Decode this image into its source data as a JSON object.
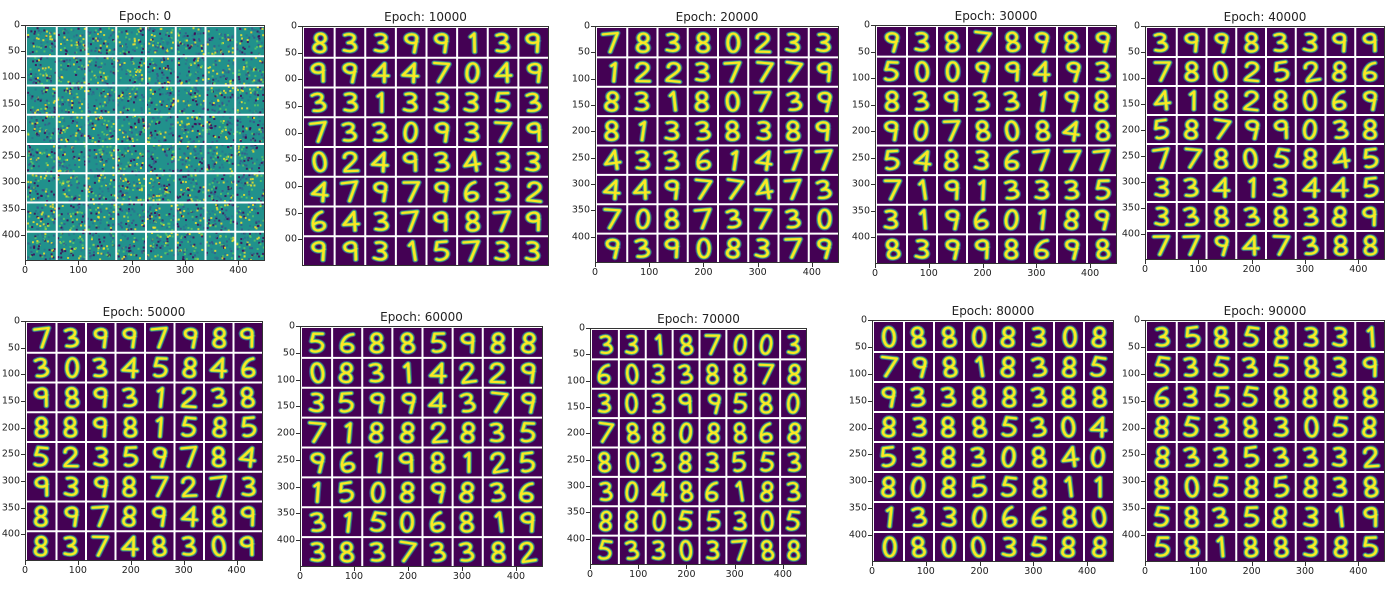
{
  "panels": [
    {
      "title": "Epoch: 0",
      "variant": "noise",
      "yticks": [
        "0",
        "50",
        "100",
        "150",
        "200",
        "250",
        "300",
        "350",
        "400"
      ],
      "xticks": [
        "0",
        "100",
        "200",
        "300",
        "400"
      ],
      "digits": []
    },
    {
      "title": "Epoch: 10000",
      "variant": "digits",
      "yticks": [
        "0",
        "50",
        "00",
        "50",
        "00",
        "50",
        "00",
        "50",
        "00"
      ],
      "xticks": [],
      "digits": [
        "8",
        "3",
        "3",
        "9",
        "9",
        "1",
        "3",
        "9",
        "9",
        "9",
        "4",
        "4",
        "7",
        "0",
        "4",
        "9",
        "3",
        "3",
        "1",
        "3",
        "3",
        "3",
        "5",
        "3",
        "7",
        "3",
        "3",
        "0",
        "9",
        "3",
        "7",
        "9",
        "0",
        "2",
        "4",
        "9",
        "3",
        "4",
        "3",
        "3",
        "4",
        "7",
        "9",
        "7",
        "9",
        "6",
        "3",
        "2",
        "6",
        "4",
        "3",
        "7",
        "9",
        "8",
        "7",
        "9",
        "9",
        "9",
        "3",
        "1",
        "5",
        "7",
        "3",
        "3"
      ]
    },
    {
      "title": "Epoch: 20000",
      "variant": "digits",
      "yticks": [
        "0",
        "50",
        "100",
        "150",
        "200",
        "250",
        "300",
        "350",
        "400"
      ],
      "xticks": [
        "0",
        "100",
        "200",
        "300",
        "400"
      ],
      "digits": [
        "7",
        "8",
        "3",
        "8",
        "0",
        "2",
        "3",
        "3",
        "1",
        "2",
        "2",
        "3",
        "7",
        "7",
        "7",
        "9",
        "8",
        "3",
        "1",
        "8",
        "0",
        "7",
        "3",
        "9",
        "8",
        "1",
        "3",
        "3",
        "8",
        "3",
        "8",
        "9",
        "4",
        "3",
        "3",
        "6",
        "1",
        "4",
        "7",
        "7",
        "4",
        "4",
        "9",
        "7",
        "7",
        "4",
        "7",
        "3",
        "7",
        "0",
        "8",
        "7",
        "3",
        "7",
        "3",
        "0",
        "9",
        "3",
        "9",
        "0",
        "8",
        "3",
        "7",
        "9"
      ]
    },
    {
      "title": "Epoch: 30000",
      "variant": "digits",
      "yticks": [
        "0",
        "50",
        "100",
        "150",
        "200",
        "250",
        "300",
        "350",
        "400"
      ],
      "xticks": [
        "0",
        "100",
        "200",
        "300",
        "400"
      ],
      "digits": [
        "9",
        "3",
        "8",
        "7",
        "8",
        "9",
        "8",
        "9",
        "5",
        "0",
        "0",
        "9",
        "9",
        "4",
        "9",
        "3",
        "8",
        "3",
        "9",
        "3",
        "3",
        "1",
        "9",
        "8",
        "9",
        "0",
        "7",
        "8",
        "0",
        "8",
        "4",
        "8",
        "5",
        "4",
        "8",
        "3",
        "6",
        "7",
        "7",
        "7",
        "7",
        "1",
        "9",
        "1",
        "3",
        "3",
        "3",
        "5",
        "3",
        "1",
        "9",
        "6",
        "0",
        "1",
        "8",
        "9",
        "8",
        "3",
        "9",
        "9",
        "8",
        "6",
        "9",
        "8"
      ]
    },
    {
      "title": "Epoch: 40000",
      "variant": "digits",
      "yticks": [
        "0",
        "50",
        "100",
        "150",
        "200",
        "250",
        "300",
        "350",
        "400"
      ],
      "xticks": [
        "0",
        "100",
        "200",
        "300",
        "400"
      ],
      "digits": [
        "3",
        "9",
        "9",
        "8",
        "3",
        "3",
        "9",
        "9",
        "7",
        "8",
        "0",
        "2",
        "5",
        "2",
        "8",
        "6",
        "4",
        "1",
        "8",
        "2",
        "8",
        "0",
        "6",
        "9",
        "5",
        "8",
        "7",
        "9",
        "9",
        "0",
        "3",
        "8",
        "7",
        "7",
        "8",
        "0",
        "5",
        "8",
        "4",
        "5",
        "3",
        "3",
        "4",
        "1",
        "3",
        "4",
        "4",
        "5",
        "3",
        "3",
        "8",
        "3",
        "8",
        "3",
        "8",
        "9",
        "7",
        "7",
        "9",
        "4",
        "7",
        "3",
        "8",
        "8"
      ]
    },
    {
      "title": "Epoch: 50000",
      "variant": "digits",
      "yticks": [
        "0",
        "50",
        "100",
        "150",
        "200",
        "250",
        "300",
        "350",
        "400"
      ],
      "xticks": [
        "0",
        "100",
        "200",
        "300",
        "400"
      ],
      "digits": [
        "7",
        "3",
        "9",
        "9",
        "7",
        "9",
        "8",
        "9",
        "3",
        "0",
        "3",
        "4",
        "5",
        "8",
        "4",
        "6",
        "9",
        "8",
        "9",
        "3",
        "1",
        "2",
        "3",
        "8",
        "8",
        "8",
        "9",
        "8",
        "1",
        "5",
        "8",
        "5",
        "5",
        "2",
        "3",
        "5",
        "9",
        "7",
        "8",
        "4",
        "9",
        "3",
        "9",
        "8",
        "7",
        "2",
        "7",
        "3",
        "8",
        "9",
        "7",
        "8",
        "9",
        "4",
        "8",
        "9",
        "8",
        "3",
        "7",
        "4",
        "8",
        "3",
        "0",
        "9"
      ]
    },
    {
      "title": "Epoch: 60000",
      "variant": "digits",
      "yticks": [
        "0",
        "50",
        "100",
        "150",
        "200",
        "250",
        "300",
        "350",
        "400"
      ],
      "xticks": [
        "0",
        "100",
        "200",
        "300",
        "400"
      ],
      "digits": [
        "5",
        "6",
        "8",
        "8",
        "5",
        "9",
        "8",
        "8",
        "0",
        "8",
        "3",
        "1",
        "4",
        "2",
        "2",
        "9",
        "3",
        "5",
        "9",
        "9",
        "4",
        "3",
        "7",
        "9",
        "7",
        "1",
        "8",
        "8",
        "2",
        "8",
        "3",
        "5",
        "9",
        "6",
        "1",
        "9",
        "8",
        "1",
        "2",
        "5",
        "1",
        "5",
        "0",
        "8",
        "9",
        "8",
        "3",
        "6",
        "3",
        "1",
        "5",
        "0",
        "6",
        "8",
        "1",
        "9",
        "3",
        "8",
        "3",
        "7",
        "3",
        "3",
        "8",
        "2"
      ]
    },
    {
      "title": "Epoch: 70000",
      "variant": "digits",
      "yticks": [
        "0",
        "50",
        "100",
        "150",
        "200",
        "250",
        "300",
        "350",
        "400"
      ],
      "xticks": [
        "0",
        "100",
        "200",
        "300",
        "400"
      ],
      "digits": [
        "3",
        "3",
        "1",
        "8",
        "7",
        "0",
        "0",
        "3",
        "6",
        "0",
        "3",
        "3",
        "8",
        "8",
        "7",
        "8",
        "3",
        "0",
        "3",
        "9",
        "9",
        "5",
        "8",
        "0",
        "7",
        "8",
        "8",
        "0",
        "8",
        "8",
        "6",
        "8",
        "8",
        "0",
        "3",
        "8",
        "3",
        "5",
        "5",
        "3",
        "3",
        "0",
        "4",
        "8",
        "6",
        "1",
        "8",
        "3",
        "8",
        "8",
        "0",
        "5",
        "5",
        "3",
        "0",
        "5",
        "5",
        "3",
        "3",
        "0",
        "3",
        "7",
        "8",
        "8"
      ]
    },
    {
      "title": "Epoch: 80000",
      "variant": "digits",
      "yticks": [
        "0",
        "50",
        "100",
        "150",
        "200",
        "250",
        "300",
        "350",
        "400"
      ],
      "xticks": [
        "0",
        "100",
        "200",
        "300",
        "400"
      ],
      "digits": [
        "0",
        "8",
        "8",
        "0",
        "8",
        "3",
        "0",
        "8",
        "7",
        "9",
        "8",
        "1",
        "8",
        "3",
        "8",
        "5",
        "9",
        "3",
        "3",
        "8",
        "8",
        "3",
        "8",
        "8",
        "8",
        "3",
        "8",
        "8",
        "5",
        "3",
        "0",
        "4",
        "5",
        "3",
        "8",
        "3",
        "0",
        "8",
        "4",
        "0",
        "8",
        "0",
        "8",
        "5",
        "5",
        "8",
        "1",
        "1",
        "1",
        "3",
        "3",
        "0",
        "6",
        "6",
        "8",
        "0",
        "0",
        "8",
        "0",
        "0",
        "3",
        "5",
        "8",
        "8"
      ]
    },
    {
      "title": "Epoch: 90000",
      "variant": "digits",
      "yticks": [
        "0",
        "50",
        "100",
        "150",
        "200",
        "250",
        "300",
        "350",
        "400"
      ],
      "xticks": [
        "0",
        "100",
        "200",
        "300",
        "400"
      ],
      "digits": [
        "3",
        "5",
        "8",
        "5",
        "8",
        "3",
        "3",
        "1",
        "5",
        "3",
        "5",
        "3",
        "5",
        "8",
        "3",
        "9",
        "6",
        "3",
        "5",
        "5",
        "8",
        "8",
        "8",
        "8",
        "8",
        "5",
        "3",
        "8",
        "3",
        "0",
        "5",
        "8",
        "8",
        "3",
        "3",
        "5",
        "3",
        "3",
        "3",
        "2",
        "8",
        "0",
        "5",
        "8",
        "5",
        "8",
        "3",
        "8",
        "5",
        "8",
        "3",
        "5",
        "8",
        "3",
        "1",
        "9",
        "5",
        "8",
        "1",
        "8",
        "8",
        "3",
        "8",
        "5"
      ]
    }
  ],
  "colors": {
    "background": "#440154",
    "noise_base": "#21918c",
    "stroke_hi": "#fde725",
    "stroke_mid": "#5ec962",
    "stroke_lo": "#3b528b",
    "grid": "#ffffff"
  }
}
